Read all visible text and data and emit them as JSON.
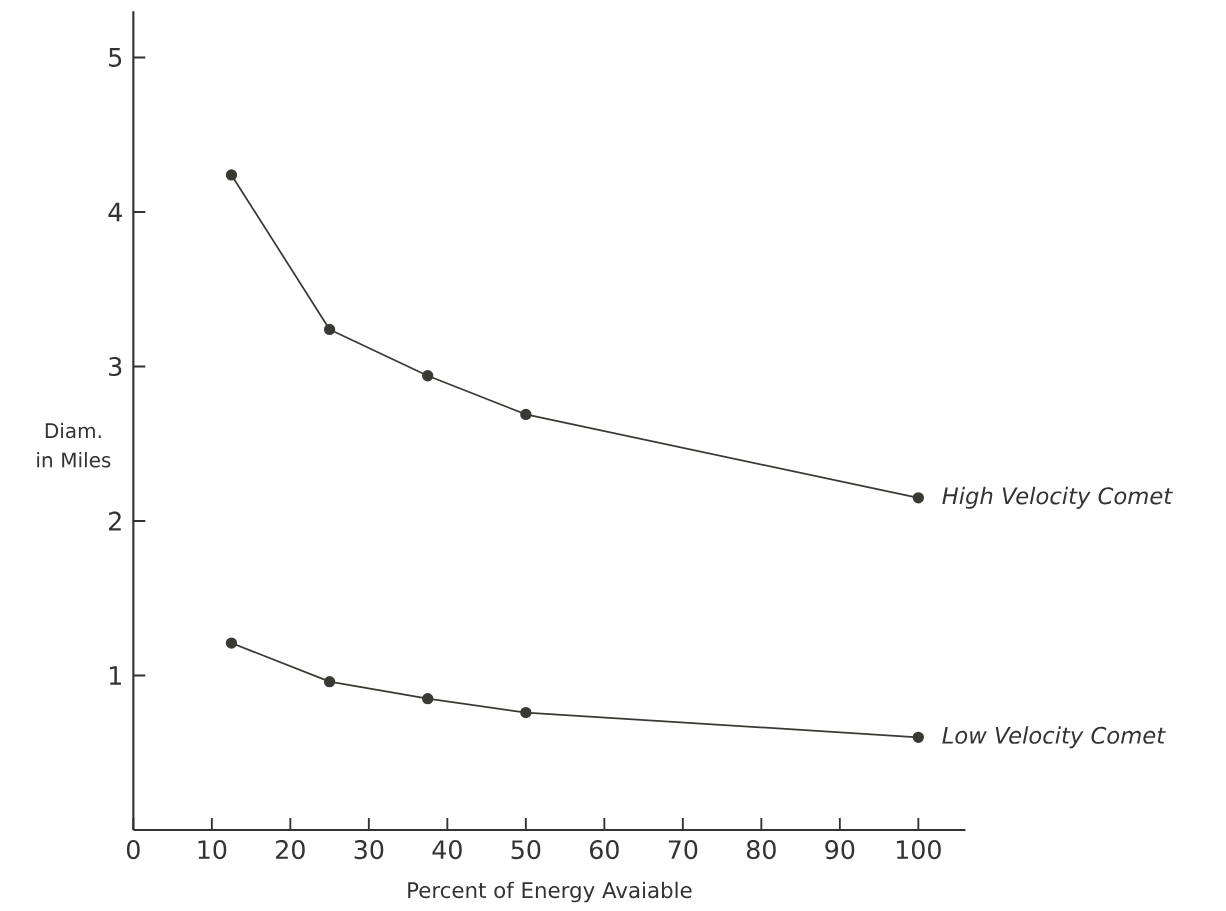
{
  "chart_data": {
    "type": "line",
    "xlabel": "Percent of Energy Avaiable",
    "ylabel": "Diam. in Miles",
    "x": [
      12.5,
      25,
      37.5,
      50,
      100
    ],
    "series": [
      {
        "name": "High Velocity Comet",
        "color": "#3a3a35",
        "values": [
          4.24,
          3.24,
          2.94,
          2.69,
          2.15
        ]
      },
      {
        "name": "Low Velocity Comet",
        "color": "#3a3a35",
        "values": [
          1.21,
          0.96,
          0.85,
          0.76,
          0.6
        ]
      }
    ],
    "xlim": [
      0,
      106
    ],
    "ylim": [
      0,
      5.3
    ],
    "xticks": [
      0,
      10,
      20,
      30,
      40,
      50,
      60,
      70,
      80,
      90,
      100
    ],
    "yticks": [
      1,
      2,
      3,
      4,
      5
    ],
    "marker": "circle",
    "line_style": "solid",
    "legend": false
  }
}
